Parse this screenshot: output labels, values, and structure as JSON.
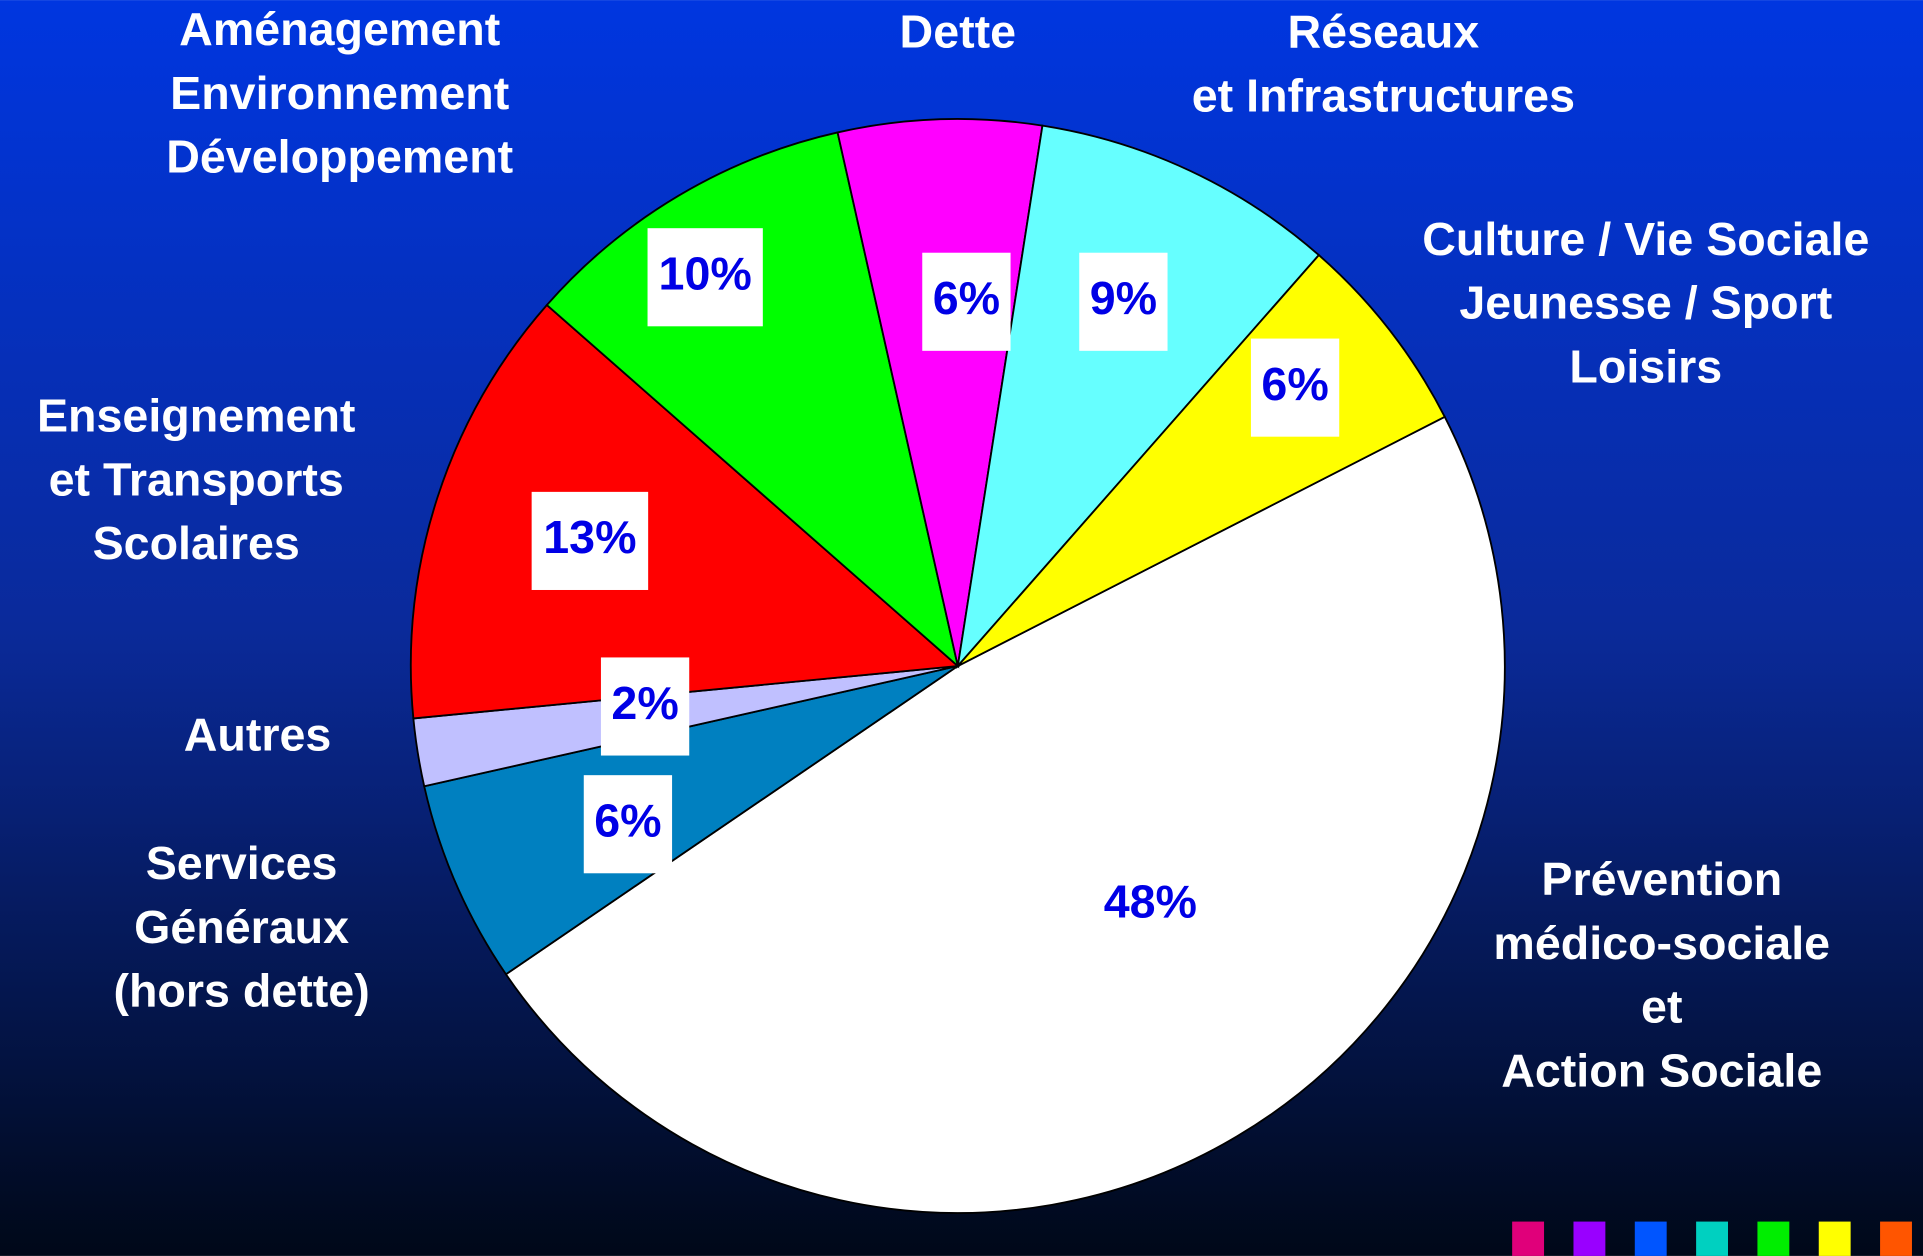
{
  "chart_data": {
    "type": "pie",
    "categories": [
      "Prévention\nmédico-sociale\net\nAction Sociale",
      "Services\nGénéraux\n(hors dette)",
      "Autres",
      "Enseignement\net Transports\nScolaires",
      "Aménagement\nEnvironnement\nDéveloppement",
      "Dette",
      "Réseaux\net Infrastructures",
      "Culture / Vie Sociale\nJeunesse / Sport\nLoisirs"
    ],
    "values": [
      48,
      6,
      2,
      13,
      10,
      6,
      9,
      6
    ],
    "value_labels": [
      "48%",
      "6%",
      "2%",
      "13%",
      "10%",
      "6%",
      "9%",
      "6%"
    ],
    "colors": [
      "#ffffff",
      "#0080c0",
      "#c0c0ff",
      "#ff0000",
      "#00ff00",
      "#ff00ff",
      "#66ffff",
      "#ffff00"
    ]
  }
}
